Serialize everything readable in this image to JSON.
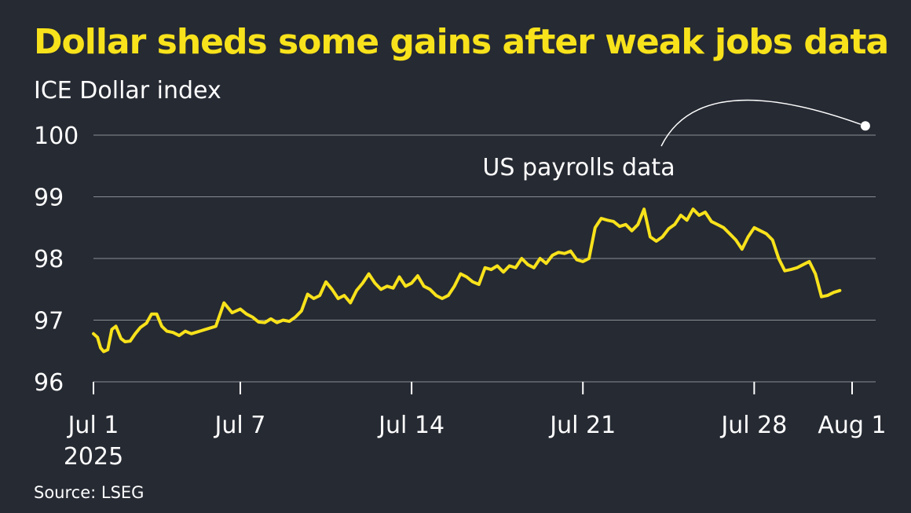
{
  "header": {
    "title": "Dollar sheds some gains after weak jobs data",
    "subtitle": "ICE Dollar index"
  },
  "footer": {
    "source": "Source: LSEG"
  },
  "colors": {
    "background": "#262a33",
    "title": "#f8e21b",
    "line": "#f8e21b",
    "grid": "#8a8d93",
    "text": "#ffffff"
  },
  "chart_data": {
    "type": "line",
    "title": "Dollar sheds some gains after weak jobs data",
    "subtitle": "ICE Dollar index",
    "xlabel": "",
    "ylabel": "",
    "ylim": [
      96,
      100
    ],
    "yticks": [
      96,
      97,
      98,
      99,
      100
    ],
    "xlim": [
      "2025-07-01",
      "2025-08-01"
    ],
    "xticks": [
      {
        "date": "2025-07-01",
        "label": "Jul 1",
        "sublabel": "2025"
      },
      {
        "date": "2025-07-07",
        "label": "Jul 7"
      },
      {
        "date": "2025-07-14",
        "label": "Jul 14"
      },
      {
        "date": "2025-07-21",
        "label": "Jul 21"
      },
      {
        "date": "2025-07-28",
        "label": "Jul 28"
      },
      {
        "date": "2025-08-01",
        "label": "Aug 1"
      }
    ],
    "grid": true,
    "legend": "none",
    "series": [
      {
        "name": "",
        "points": [
          [
            "2025-07-01 00:00",
            96.78
          ],
          [
            "2025-07-01 04:00",
            96.72
          ],
          [
            "2025-07-01 07:00",
            96.55
          ],
          [
            "2025-07-01 10:00",
            96.49
          ],
          [
            "2025-07-01 14:00",
            96.52
          ],
          [
            "2025-07-01 18:00",
            96.85
          ],
          [
            "2025-07-01 22:00",
            96.9
          ],
          [
            "2025-07-02 03:00",
            96.7
          ],
          [
            "2025-07-02 07:00",
            96.65
          ],
          [
            "2025-07-02 12:00",
            96.66
          ],
          [
            "2025-07-02 17:00",
            96.78
          ],
          [
            "2025-07-02 22:00",
            96.88
          ],
          [
            "2025-07-03 04:00",
            96.95
          ],
          [
            "2025-07-03 09:00",
            97.1
          ],
          [
            "2025-07-03 14:00",
            97.1
          ],
          [
            "2025-07-03 19:00",
            96.9
          ],
          [
            "2025-07-04 00:00",
            96.82
          ],
          [
            "2025-07-04 06:00",
            96.8
          ],
          [
            "2025-07-04 12:00",
            96.75
          ],
          [
            "2025-07-04 18:00",
            96.82
          ],
          [
            "2025-07-05 00:00",
            96.78
          ],
          [
            "2025-07-05 12:00",
            96.84
          ],
          [
            "2025-07-06 00:00",
            96.9
          ],
          [
            "2025-07-06 08:00",
            97.28
          ],
          [
            "2025-07-06 16:00",
            97.12
          ],
          [
            "2025-07-07 00:00",
            97.18
          ],
          [
            "2025-07-07 06:00",
            97.1
          ],
          [
            "2025-07-07 12:00",
            97.05
          ],
          [
            "2025-07-07 18:00",
            96.97
          ],
          [
            "2025-07-08 00:00",
            96.96
          ],
          [
            "2025-07-08 06:00",
            97.02
          ],
          [
            "2025-07-08 12:00",
            96.96
          ],
          [
            "2025-07-08 18:00",
            97.0
          ],
          [
            "2025-07-09 00:00",
            96.98
          ],
          [
            "2025-07-09 06:00",
            97.05
          ],
          [
            "2025-07-09 12:00",
            97.15
          ],
          [
            "2025-07-09 18:00",
            97.42
          ],
          [
            "2025-07-10 00:00",
            97.35
          ],
          [
            "2025-07-10 06:00",
            97.4
          ],
          [
            "2025-07-10 12:00",
            97.62
          ],
          [
            "2025-07-10 18:00",
            97.5
          ],
          [
            "2025-07-11 00:00",
            97.35
          ],
          [
            "2025-07-11 06:00",
            97.4
          ],
          [
            "2025-07-11 12:00",
            97.28
          ],
          [
            "2025-07-11 18:00",
            97.48
          ],
          [
            "2025-07-12 00:00",
            97.6
          ],
          [
            "2025-07-12 06:00",
            97.75
          ],
          [
            "2025-07-12 12:00",
            97.6
          ],
          [
            "2025-07-12 18:00",
            97.5
          ],
          [
            "2025-07-13 00:00",
            97.55
          ],
          [
            "2025-07-13 06:00",
            97.52
          ],
          [
            "2025-07-13 12:00",
            97.7
          ],
          [
            "2025-07-13 18:00",
            97.55
          ],
          [
            "2025-07-14 00:00",
            97.6
          ],
          [
            "2025-07-14 06:00",
            97.72
          ],
          [
            "2025-07-14 12:00",
            97.55
          ],
          [
            "2025-07-14 18:00",
            97.5
          ],
          [
            "2025-07-15 00:00",
            97.4
          ],
          [
            "2025-07-15 06:00",
            97.35
          ],
          [
            "2025-07-15 12:00",
            97.4
          ],
          [
            "2025-07-15 18:00",
            97.55
          ],
          [
            "2025-07-16 00:00",
            97.75
          ],
          [
            "2025-07-16 06:00",
            97.7
          ],
          [
            "2025-07-16 12:00",
            97.62
          ],
          [
            "2025-07-16 18:00",
            97.58
          ],
          [
            "2025-07-17 00:00",
            97.85
          ],
          [
            "2025-07-17 06:00",
            97.82
          ],
          [
            "2025-07-17 12:00",
            97.88
          ],
          [
            "2025-07-17 18:00",
            97.78
          ],
          [
            "2025-07-18 00:00",
            97.88
          ],
          [
            "2025-07-18 06:00",
            97.85
          ],
          [
            "2025-07-18 12:00",
            98.0
          ],
          [
            "2025-07-18 18:00",
            97.9
          ],
          [
            "2025-07-19 00:00",
            97.85
          ],
          [
            "2025-07-19 06:00",
            98.0
          ],
          [
            "2025-07-19 12:00",
            97.92
          ],
          [
            "2025-07-19 18:00",
            98.05
          ],
          [
            "2025-07-20 00:00",
            98.1
          ],
          [
            "2025-07-20 06:00",
            98.08
          ],
          [
            "2025-07-20 12:00",
            98.12
          ],
          [
            "2025-07-20 18:00",
            97.98
          ],
          [
            "2025-07-21 00:00",
            97.95
          ],
          [
            "2025-07-21 06:00",
            98.0
          ],
          [
            "2025-07-21 12:00",
            98.5
          ],
          [
            "2025-07-21 18:00",
            98.65
          ],
          [
            "2025-07-22 00:00",
            98.62
          ],
          [
            "2025-07-22 06:00",
            98.6
          ],
          [
            "2025-07-22 12:00",
            98.52
          ],
          [
            "2025-07-22 18:00",
            98.55
          ],
          [
            "2025-07-23 00:00",
            98.45
          ],
          [
            "2025-07-23 06:00",
            98.55
          ],
          [
            "2025-07-23 12:00",
            98.8
          ],
          [
            "2025-07-23 18:00",
            98.35
          ],
          [
            "2025-07-24 00:00",
            98.28
          ],
          [
            "2025-07-24 06:00",
            98.35
          ],
          [
            "2025-07-24 12:00",
            98.48
          ],
          [
            "2025-07-24 18:00",
            98.55
          ],
          [
            "2025-07-25 00:00",
            98.7
          ],
          [
            "2025-07-25 06:00",
            98.62
          ],
          [
            "2025-07-25 12:00",
            98.8
          ],
          [
            "2025-07-25 18:00",
            98.7
          ],
          [
            "2025-07-26 00:00",
            98.75
          ],
          [
            "2025-07-26 06:00",
            98.6
          ],
          [
            "2025-07-26 12:00",
            98.55
          ],
          [
            "2025-07-26 18:00",
            98.5
          ],
          [
            "2025-07-27 00:00",
            98.4
          ],
          [
            "2025-07-27 06:00",
            98.3
          ],
          [
            "2025-07-27 12:00",
            98.15
          ],
          [
            "2025-07-27 18:00",
            98.35
          ],
          [
            "2025-07-28 00:00",
            98.5
          ],
          [
            "2025-07-28 06:00",
            98.45
          ],
          [
            "2025-07-28 12:00",
            98.4
          ],
          [
            "2025-07-28 18:00",
            98.3
          ],
          [
            "2025-07-29 00:00",
            98.0
          ],
          [
            "2025-07-29 06:00",
            97.8
          ],
          [
            "2025-07-29 12:00",
            97.82
          ],
          [
            "2025-07-29 18:00",
            97.85
          ],
          [
            "2025-07-30 00:00",
            97.9
          ],
          [
            "2025-07-30 06:00",
            97.95
          ],
          [
            "2025-07-30 12:00",
            97.75
          ],
          [
            "2025-07-30 18:00",
            97.38
          ],
          [
            "2025-07-31 00:00",
            97.4
          ],
          [
            "2025-07-31 06:00",
            97.45
          ],
          [
            "2025-07-31 12:00",
            97.48
          ]
        ]
      }
    ],
    "annotations": [
      {
        "label": "US payrolls data",
        "date": "2025-08-01 13:00",
        "value": 100.15
      }
    ]
  }
}
